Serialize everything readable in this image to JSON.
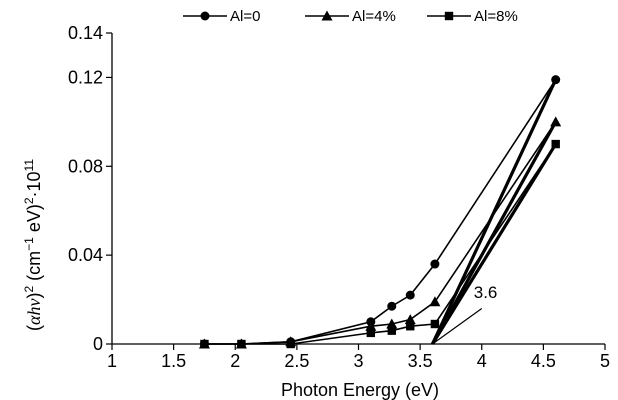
{
  "chart_data": {
    "type": "line",
    "title": "",
    "xlabel": "Photon Energy (eV)",
    "ylabel": "(αhν)² (cm⁻¹ eV)²·10¹¹",
    "ylabel_parts": {
      "base": "(",
      "alpha": "α",
      "hv": "hv",
      "close": ")",
      "exp2a": "2",
      "unit_open": " (cm",
      "exp_m1": "−1",
      "unit_mid": " eV)",
      "exp2b": "2",
      "times": "·10",
      "exp11": "11"
    },
    "xlim": [
      1,
      5
    ],
    "ylim": [
      0,
      0.14
    ],
    "x_ticks": [
      1,
      1.5,
      2,
      2.5,
      3,
      3.5,
      4,
      4.5,
      5
    ],
    "x_tick_labels": [
      "1",
      "1.5",
      "2",
      "2.5",
      "3",
      "3.5",
      "4",
      "4.5",
      "5"
    ],
    "y_ticks": [
      0,
      0.04,
      0.08,
      0.12,
      0.14
    ],
    "y_tick_labels": [
      "0",
      "0.04",
      "0.08",
      "0.12",
      "0.14"
    ],
    "legend_position": "top",
    "grid": false,
    "series": [
      {
        "name": "Al=0",
        "marker": "circle",
        "x": [
          1.75,
          2.05,
          2.45,
          3.1,
          3.27,
          3.42,
          3.62,
          4.6
        ],
        "y": [
          0.0,
          0.0,
          0.001,
          0.01,
          0.017,
          0.022,
          0.036,
          0.119
        ]
      },
      {
        "name": "Al=4%",
        "marker": "triangle",
        "x": [
          1.75,
          2.05,
          2.45,
          3.1,
          3.27,
          3.42,
          3.62,
          4.6
        ],
        "y": [
          0.0,
          0.0,
          0.001,
          0.008,
          0.009,
          0.011,
          0.019,
          0.1
        ]
      },
      {
        "name": "Al=8%",
        "marker": "square",
        "x": [
          1.75,
          2.05,
          2.45,
          3.1,
          3.27,
          3.42,
          3.62,
          4.6
        ],
        "y": [
          0.0,
          0.0,
          0.0,
          0.005,
          0.006,
          0.008,
          0.009,
          0.09
        ]
      }
    ],
    "tangent_lines": [
      {
        "x": [
          3.6,
          4.6
        ],
        "y": [
          0.0,
          0.119
        ]
      },
      {
        "x": [
          3.6,
          4.6
        ],
        "y": [
          0.0,
          0.1
        ]
      },
      {
        "x": [
          3.6,
          4.6
        ],
        "y": [
          0.0,
          0.09
        ]
      }
    ],
    "annotation": {
      "text": "3.6",
      "leader": {
        "x": [
          3.6,
          4.0
        ],
        "y": [
          0.0,
          0.016
        ]
      },
      "at": {
        "x": 4.0,
        "y": 0.019
      }
    }
  }
}
